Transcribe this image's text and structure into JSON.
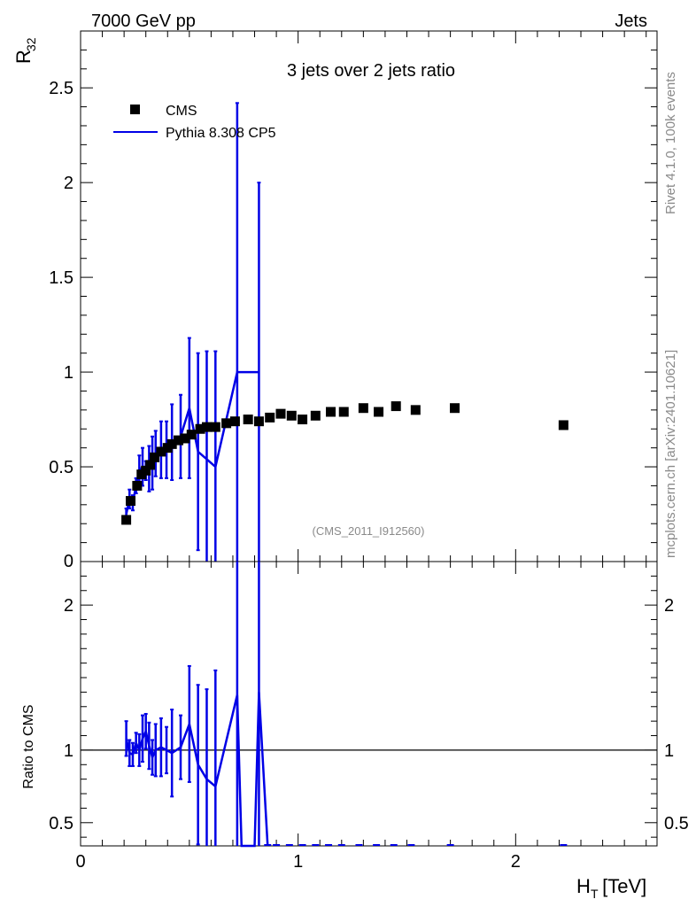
{
  "chart_data": [
    {
      "type": "scatter",
      "panel": "main",
      "title": "3 jets over 2 jets ratio",
      "corner_left": "7000 GeV pp",
      "corner_right": "Jets",
      "analysis_tag": "(CMS_2011_I912560)",
      "side_text_1": "Rivet 4.1.0,  100k events",
      "side_text_2": "mcplots.cern.ch [arXiv:2401.10621]",
      "ylabel_main": "R",
      "ylabel_sub": "32",
      "xlim": [
        0,
        2.65
      ],
      "ylim": [
        0,
        2.8
      ],
      "yticks": [
        {
          "v": 0.5,
          "label": "0.5"
        },
        {
          "v": 1,
          "label": "1"
        },
        {
          "v": 1.5,
          "label": "1.5"
        },
        {
          "v": 2,
          "label": "2"
        },
        {
          "v": 2.5,
          "label": "2.5"
        }
      ],
      "zero_tick_label": "0",
      "legend": [
        {
          "name": "CMS",
          "marker": "square",
          "color": "#000000"
        },
        {
          "name": "Pythia 8.308 CP5",
          "marker": "line",
          "color": "#0000e6"
        }
      ],
      "series": [
        {
          "name": "CMS",
          "x": [
            0.21,
            0.23,
            0.26,
            0.28,
            0.3,
            0.32,
            0.34,
            0.37,
            0.4,
            0.42,
            0.45,
            0.48,
            0.51,
            0.55,
            0.58,
            0.62,
            0.67,
            0.71,
            0.77,
            0.82,
            0.87,
            0.92,
            0.97,
            1.02,
            1.08,
            1.15,
            1.21,
            1.3,
            1.37,
            1.45,
            1.54,
            1.72,
            2.22
          ],
          "y": [
            0.22,
            0.32,
            0.4,
            0.46,
            0.48,
            0.51,
            0.55,
            0.58,
            0.6,
            0.62,
            0.64,
            0.65,
            0.67,
            0.7,
            0.71,
            0.71,
            0.73,
            0.74,
            0.75,
            0.74,
            0.76,
            0.78,
            0.77,
            0.75,
            0.77,
            0.79,
            0.79,
            0.81,
            0.79,
            0.82,
            0.8,
            0.81,
            0.72
          ]
        },
        {
          "name": "Pythia 8.308 CP5",
          "x": [
            0.21,
            0.225,
            0.24,
            0.255,
            0.27,
            0.285,
            0.3,
            0.315,
            0.33,
            0.345,
            0.37,
            0.395,
            0.42,
            0.46,
            0.5,
            0.54,
            0.58,
            0.62,
            0.72,
            0.82
          ],
          "y": [
            0.25,
            0.33,
            0.31,
            0.4,
            0.48,
            0.5,
            0.48,
            0.49,
            0.52,
            0.57,
            0.59,
            0.59,
            0.63,
            0.66,
            0.81,
            0.58,
            0.54,
            0.5,
            1.0,
            1.0
          ],
          "yerr": [
            0.03,
            0.05,
            0.04,
            0.04,
            0.08,
            0.1,
            0.05,
            0.12,
            0.14,
            0.12,
            0.15,
            0.15,
            0.2,
            0.22,
            0.37,
            0.52,
            0.57,
            0.61,
            1.42,
            1.0
          ]
        }
      ]
    },
    {
      "type": "line",
      "panel": "ratio",
      "ylabel": "Ratio to CMS",
      "xlabel_main": "H",
      "xlabel_sub": "T",
      "xlabel_unit": " [TeV]",
      "xlim": [
        0,
        2.65
      ],
      "ylim": [
        0.34,
        2.3
      ],
      "yticks": [
        {
          "v": 0.5,
          "label": "0.5"
        },
        {
          "v": 1,
          "label": "1"
        },
        {
          "v": 2,
          "label": "2"
        }
      ],
      "xticks": [
        {
          "v": 0,
          "label": "0"
        },
        {
          "v": 1,
          "label": "1"
        },
        {
          "v": 2,
          "label": "2"
        }
      ],
      "reference_line": 1.0,
      "series": [
        {
          "name": "Pythia 8.308 CP5",
          "x": [
            0.21,
            0.225,
            0.24,
            0.255,
            0.27,
            0.285,
            0.3,
            0.315,
            0.33,
            0.345,
            0.37,
            0.395,
            0.42,
            0.46,
            0.5,
            0.54,
            0.58,
            0.62,
            0.72,
            0.82
          ],
          "y": [
            1.08,
            0.98,
            0.97,
            1.05,
            1.0,
            1.08,
            1.13,
            1.03,
            0.95,
            1.0,
            1.02,
            1.0,
            0.98,
            1.02,
            1.18,
            0.9,
            0.8,
            0.75,
            1.38,
            1.4
          ],
          "yerr": [
            0.12,
            0.09,
            0.08,
            0.07,
            0.11,
            0.16,
            0.12,
            0.16,
            0.12,
            0.18,
            0.2,
            0.16,
            0.3,
            0.22,
            0.4,
            0.55,
            0.62,
            0.8,
            1.6,
            1.5
          ]
        }
      ],
      "zero_markers_x": [
        0.86,
        0.9,
        0.96,
        1.02,
        1.08,
        1.14,
        1.2,
        1.28,
        1.36,
        1.44,
        1.52,
        1.7,
        2.22
      ]
    }
  ]
}
